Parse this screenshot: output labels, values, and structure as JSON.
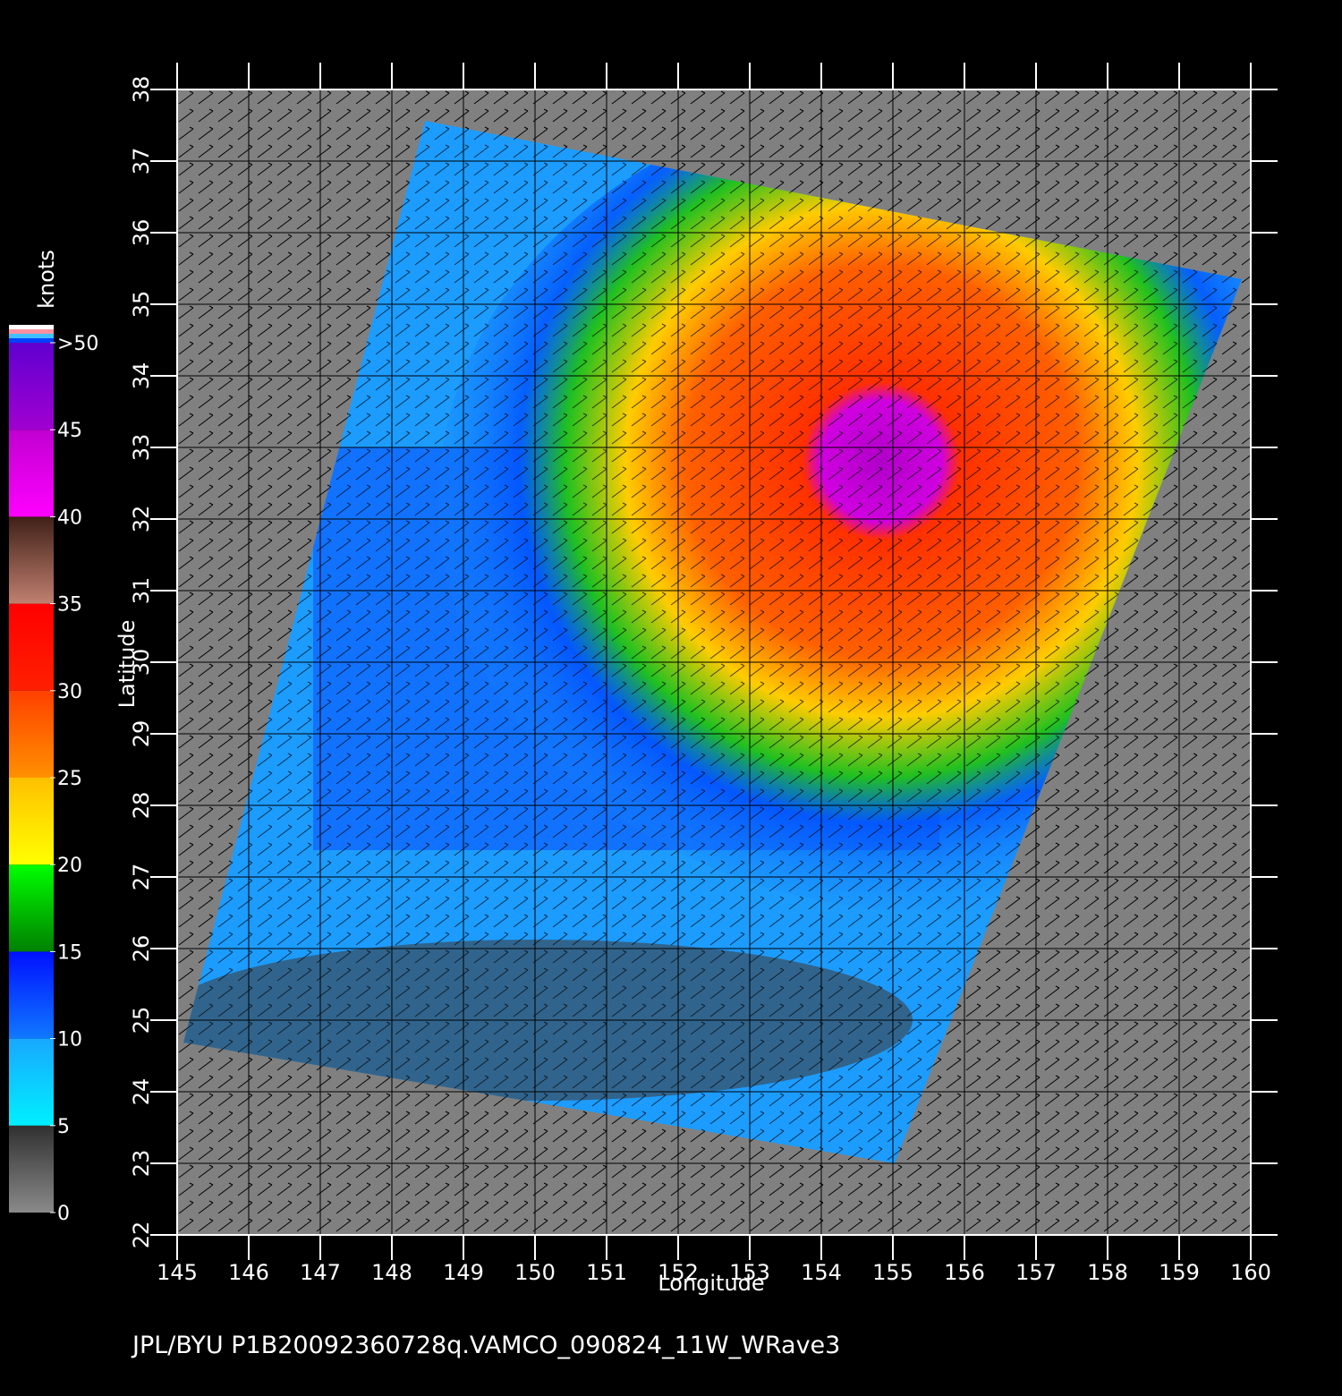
{
  "map": {
    "title": "JPL/BYU  P1B20092360728q.VAMCO_090824_11W_WRave3",
    "xlabel": "Longitude",
    "ylabel": "Latitude",
    "xlim": [
      145,
      160
    ],
    "ylim": [
      22,
      38
    ],
    "xticks": [
      145,
      146,
      147,
      148,
      149,
      150,
      151,
      152,
      153,
      154,
      155,
      156,
      157,
      158,
      159,
      160
    ],
    "yticks": [
      22,
      23,
      24,
      25,
      26,
      27,
      28,
      29,
      30,
      31,
      32,
      33,
      34,
      35,
      36,
      37,
      38
    ],
    "grid": true,
    "colorbar": {
      "label": "knots",
      "lim": [
        0,
        50
      ],
      "ticks": [
        0,
        5,
        10,
        15,
        20,
        25,
        30,
        35,
        40,
        45,
        {
          "value": 50,
          "label": ">50"
        }
      ],
      "colors": [
        [
          "#8a8a8a",
          "#303030"
        ],
        [
          "#00f0ff",
          "#18a8ff"
        ],
        [
          "#1078ff",
          "#0010ff"
        ],
        [
          "#008000",
          "#00ff00"
        ],
        [
          "#ffff00",
          "#ffc000"
        ],
        [
          "#ff9000",
          "#ff4000"
        ],
        [
          "#ff2000",
          "#ff0000"
        ],
        [
          "#c08070",
          "#402018"
        ],
        [
          "#ff00ff",
          "#c000d0"
        ],
        [
          "#a000d0",
          "#6000d0"
        ]
      ]
    }
  }
}
